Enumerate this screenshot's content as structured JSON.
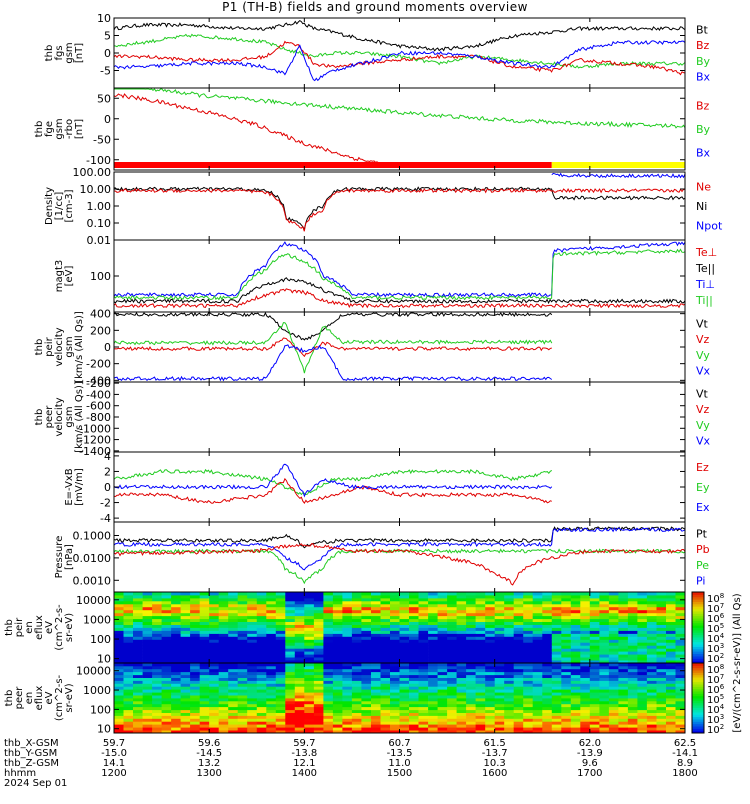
{
  "title": "P1 (TH-B) fields and ground moments overview",
  "colors": {
    "black": "#000000",
    "red": "#e00000",
    "green": "#22cc22",
    "blue": "#0000ff",
    "yellow": "#ffff00"
  },
  "chart_data": [
    {
      "type": "line",
      "id": "fgs",
      "ylabel_lines": [
        "thb",
        "fgs",
        "gsm",
        "[nT]"
      ],
      "ylim": [
        -10,
        10
      ],
      "yticks": [
        10,
        5,
        0,
        -5
      ],
      "legend": [
        {
          "name": "Bt",
          "color": "#000000"
        },
        {
          "name": "Bz",
          "color": "#e00000"
        },
        {
          "name": "By",
          "color": "#22cc22"
        },
        {
          "name": "Bx",
          "color": "#0000ff"
        }
      ],
      "series": [
        {
          "name": "Bt",
          "color": "#000000",
          "x": [
            12.0,
            12.3,
            12.8,
            13.3,
            13.6,
            13.8,
            13.95,
            14.1,
            14.3,
            14.6,
            15.0,
            15.4,
            15.8,
            16.2,
            16.6,
            16.9,
            17.3,
            17.7,
            18.0
          ],
          "y": [
            7,
            8,
            8,
            7,
            7,
            8,
            9,
            7,
            6,
            4,
            2,
            1,
            2,
            5,
            6,
            7,
            7,
            7,
            7
          ]
        },
        {
          "name": "By",
          "color": "#22cc22",
          "x": [
            12.0,
            12.3,
            12.8,
            13.3,
            13.6,
            13.8,
            13.95,
            14.1,
            14.3,
            14.6,
            15.0,
            15.4,
            15.8,
            16.2,
            16.6,
            16.9,
            17.3,
            17.7,
            18.0
          ],
          "y": [
            2,
            3,
            5,
            4,
            3,
            1,
            0,
            -1,
            0,
            0,
            -1,
            -3,
            -1,
            -2,
            -3,
            -4,
            -3,
            -3,
            -3
          ]
        },
        {
          "name": "Bz",
          "color": "#e00000",
          "x": [
            12.0,
            12.3,
            12.8,
            13.3,
            13.6,
            13.8,
            13.95,
            14.1,
            14.3,
            14.6,
            15.0,
            15.4,
            15.8,
            16.2,
            16.6,
            16.9,
            17.3,
            17.7,
            18.0
          ],
          "y": [
            -1,
            -1,
            -2,
            -2,
            -1,
            3,
            2,
            -3,
            -4,
            -3,
            -2,
            -1,
            -1,
            -4,
            -5,
            -2,
            -3,
            -4,
            -6
          ]
        },
        {
          "name": "Bx",
          "color": "#0000ff",
          "x": [
            12.0,
            12.3,
            12.8,
            13.3,
            13.6,
            13.8,
            13.95,
            14.1,
            14.3,
            14.6,
            15.0,
            15.4,
            15.8,
            16.2,
            16.6,
            16.9,
            17.3,
            17.7,
            18.0
          ],
          "y": [
            -4,
            -4,
            -3,
            -3,
            -4,
            -6,
            2,
            -8,
            -5,
            -3,
            0,
            0,
            -1,
            -3,
            -4,
            1,
            3,
            3,
            3
          ]
        }
      ]
    },
    {
      "type": "line",
      "id": "fge",
      "ylabel_lines": [
        "thb",
        "fge",
        "gsm",
        "-rbo",
        "[nT]"
      ],
      "ylim": [
        -125,
        75
      ],
      "yticks": [
        50,
        0,
        -50,
        -100
      ],
      "legend": [
        {
          "name": "Bz",
          "color": "#e00000"
        },
        {
          "name": "By",
          "color": "#22cc22"
        },
        {
          "name": "Bx",
          "color": "#0000ff"
        }
      ],
      "series": [
        {
          "name": "Bz",
          "color": "#e00000",
          "x": [
            12.0,
            12.5,
            13.0,
            13.5,
            14.0,
            14.5,
            15.0
          ],
          "y": [
            60,
            40,
            15,
            -15,
            -60,
            -95,
            -118
          ]
        },
        {
          "name": "By",
          "color": "#22cc22",
          "x": [
            12.0,
            13.0,
            14.0,
            15.0,
            16.0,
            17.0,
            18.0
          ],
          "y": [
            85,
            55,
            35,
            15,
            -2,
            -12,
            -18
          ]
        }
      ],
      "bar": [
        {
          "from": 12.0,
          "to": 16.6,
          "color": "#ff0000"
        },
        {
          "from": 16.6,
          "to": 18.0,
          "color": "#ffff00"
        }
      ]
    },
    {
      "type": "line",
      "id": "density",
      "yscale": "log",
      "ylabel_lines": [
        "Density",
        "[1/cc]",
        "[cm-3]"
      ],
      "ylim": [
        0.01,
        100
      ],
      "yticks": [
        100.0,
        10.0,
        1.0,
        0.1,
        0.01
      ],
      "ytick_labels": [
        "100.00",
        "10.00",
        "1.00",
        "0.10",
        "0.01"
      ],
      "legend": [
        {
          "name": "Ne",
          "color": "#e00000"
        },
        {
          "name": "Ni",
          "color": "#000000"
        },
        {
          "name": "Npot",
          "color": "#0000ff"
        }
      ],
      "series": [
        {
          "name": "Ni",
          "color": "#000000",
          "x": [
            12.0,
            13.3,
            13.6,
            13.8,
            14.0,
            14.2,
            14.4,
            15.0,
            16.0,
            16.6,
            16.62,
            18.0
          ],
          "y": [
            10,
            10,
            8,
            0.2,
            0.05,
            1,
            10,
            10,
            10,
            10,
            3,
            3
          ]
        },
        {
          "name": "Ne",
          "color": "#e00000",
          "x": [
            12.0,
            13.3,
            13.6,
            13.8,
            14.0,
            14.2,
            14.4,
            15.0,
            16.0,
            18.0
          ],
          "y": [
            8,
            8,
            6,
            0.15,
            0.04,
            0.6,
            8,
            8,
            8,
            8
          ]
        },
        {
          "name": "Npot",
          "color": "#0000ff",
          "x": [
            16.6,
            17.0,
            18.0
          ],
          "y": [
            70,
            60,
            60
          ]
        }
      ]
    },
    {
      "type": "line",
      "id": "temp",
      "yscale": "log",
      "ylabel_lines": [
        "magt3",
        "[eV]"
      ],
      "ylim": [
        10,
        1000
      ],
      "yticks": [
        100
      ],
      "ytick_labels": [
        "100"
      ],
      "legend": [
        {
          "name": "Te⊥",
          "color": "#e00000"
        },
        {
          "name": "Te||",
          "color": "#000000"
        },
        {
          "name": "Ti⊥",
          "color": "#0000ff"
        },
        {
          "name": "Ti||",
          "color": "#22cc22"
        }
      ],
      "series": [
        {
          "name": "Ti⊥",
          "color": "#0000ff",
          "x": [
            12.0,
            13.3,
            13.6,
            13.8,
            14.0,
            14.2,
            14.5,
            16.6,
            16.62,
            18.0
          ],
          "y": [
            30,
            30,
            200,
            800,
            500,
            100,
            30,
            30,
            500,
            800
          ]
        },
        {
          "name": "Ti||",
          "color": "#22cc22",
          "x": [
            12.0,
            13.3,
            13.6,
            13.8,
            14.0,
            14.2,
            14.5,
            16.6,
            16.62,
            18.0
          ],
          "y": [
            25,
            25,
            150,
            400,
            250,
            80,
            25,
            25,
            400,
            500
          ]
        },
        {
          "name": "Te||",
          "color": "#000000",
          "x": [
            12.0,
            13.3,
            13.6,
            13.8,
            14.0,
            14.2,
            14.5,
            18.0
          ],
          "y": [
            20,
            20,
            60,
            80,
            70,
            40,
            20,
            20
          ]
        },
        {
          "name": "Te⊥",
          "color": "#e00000",
          "x": [
            12.0,
            13.3,
            13.6,
            13.8,
            14.0,
            14.2,
            14.5,
            18.0
          ],
          "y": [
            15,
            15,
            30,
            40,
            35,
            20,
            15,
            15
          ]
        }
      ]
    },
    {
      "type": "line",
      "id": "peir_vel",
      "ylabel_lines": [
        "thb",
        "peir",
        "velocity",
        "gsm",
        "[km/s (All Qs)]"
      ],
      "ylim": [
        -420,
        420
      ],
      "yticks": [
        400,
        200,
        0,
        -200,
        -400
      ],
      "legend": [
        {
          "name": "Vt",
          "color": "#000000"
        },
        {
          "name": "Vz",
          "color": "#e00000"
        },
        {
          "name": "Vy",
          "color": "#22cc22"
        },
        {
          "name": "Vx",
          "color": "#0000ff"
        }
      ],
      "series": [
        {
          "name": "Vt",
          "color": "#000000",
          "x": [
            12.0,
            13.6,
            13.8,
            14.0,
            14.2,
            14.4,
            16.6
          ],
          "y": [
            390,
            390,
            200,
            80,
            200,
            390,
            390
          ]
        },
        {
          "name": "Vy",
          "color": "#22cc22",
          "x": [
            12.0,
            13.6,
            13.8,
            14.0,
            14.2,
            14.4,
            16.6
          ],
          "y": [
            50,
            50,
            300,
            -300,
            250,
            60,
            60
          ]
        },
        {
          "name": "Vz",
          "color": "#e00000",
          "x": [
            12.0,
            13.6,
            13.8,
            14.0,
            14.2,
            14.4,
            16.6
          ],
          "y": [
            -20,
            -20,
            100,
            -100,
            50,
            -20,
            -20
          ]
        },
        {
          "name": "Vx",
          "color": "#0000ff",
          "x": [
            12.0,
            13.6,
            13.8,
            14.0,
            14.2,
            14.4,
            16.6
          ],
          "y": [
            -380,
            -380,
            20,
            -50,
            10,
            -380,
            -380
          ]
        }
      ]
    },
    {
      "type": "line",
      "id": "peer_vel",
      "ylabel_lines": [
        "thb",
        "peer",
        "velocity",
        "gsm",
        "[km/s (All Qs)]"
      ],
      "ylim": [
        -1420,
        -180
      ],
      "yticks": [
        -200,
        -400,
        -600,
        -800,
        -1000,
        -1200,
        -1400
      ],
      "legend": [
        {
          "name": "Vt",
          "color": "#000000"
        },
        {
          "name": "Vz",
          "color": "#e00000"
        },
        {
          "name": "Vy",
          "color": "#22cc22"
        },
        {
          "name": "Vx",
          "color": "#0000ff"
        }
      ],
      "series": []
    },
    {
      "type": "line",
      "id": "efield",
      "ylabel_lines": [
        "E=-VxB",
        "[mV/m]"
      ],
      "ylim": [
        -4.5,
        4.5
      ],
      "yticks": [
        4,
        2,
        0,
        -2,
        -4
      ],
      "legend": [
        {
          "name": "Ez",
          "color": "#e00000"
        },
        {
          "name": "Ey",
          "color": "#22cc22"
        },
        {
          "name": "Ex",
          "color": "#0000ff"
        }
      ],
      "series": [
        {
          "name": "Ey",
          "color": "#22cc22",
          "x": [
            12.0,
            12.5,
            13.0,
            13.6,
            13.8,
            14.0,
            14.3,
            14.6,
            15.0,
            15.4,
            15.8,
            16.2,
            16.6
          ],
          "y": [
            1,
            2,
            2,
            1,
            0,
            -1,
            1,
            1,
            2,
            2,
            2,
            1,
            2
          ]
        },
        {
          "name": "Ez",
          "color": "#e00000",
          "x": [
            12.0,
            12.5,
            13.0,
            13.6,
            13.8,
            14.0,
            14.3,
            14.6,
            15.0,
            15.4,
            15.8,
            16.2,
            16.6
          ],
          "y": [
            -1,
            -1,
            -2,
            -1,
            1,
            -2,
            -1,
            0,
            -1,
            -1,
            -1,
            -1,
            -2
          ]
        },
        {
          "name": "Ex",
          "color": "#0000ff",
          "x": [
            12.0,
            13.6,
            13.8,
            14.0,
            14.2,
            14.5,
            16.6
          ],
          "y": [
            0,
            0,
            3,
            -1,
            1,
            0,
            0
          ]
        }
      ]
    },
    {
      "type": "line",
      "id": "pressure",
      "yscale": "log",
      "ylabel_lines": [
        "Pressure",
        "[nPa]"
      ],
      "ylim": [
        0.0003,
        0.4
      ],
      "yticks": [
        0.1,
        0.01,
        0.001,
        0.0001
      ],
      "ytick_labels": [
        "0.1000",
        "0.0100",
        "0.0010",
        "0.0001"
      ],
      "legend": [
        {
          "name": "Pt",
          "color": "#000000"
        },
        {
          "name": "Pb",
          "color": "#e00000"
        },
        {
          "name": "Pe",
          "color": "#22cc22"
        },
        {
          "name": "Pi",
          "color": "#0000ff"
        }
      ],
      "series": [
        {
          "name": "Pt",
          "color": "#000000",
          "x": [
            12.0,
            13.6,
            13.8,
            14.0,
            14.2,
            14.4,
            16.6,
            16.62,
            18.0
          ],
          "y": [
            0.06,
            0.06,
            0.1,
            0.03,
            0.05,
            0.06,
            0.06,
            0.2,
            0.2
          ]
        },
        {
          "name": "Pi",
          "color": "#0000ff",
          "x": [
            12.0,
            13.6,
            13.8,
            14.0,
            14.2,
            14.4,
            16.6,
            16.62,
            18.0
          ],
          "y": [
            0.04,
            0.04,
            0.01,
            0.003,
            0.01,
            0.04,
            0.04,
            0.18,
            0.18
          ]
        },
        {
          "name": "Pe",
          "color": "#22cc22",
          "x": [
            12.0,
            13.6,
            13.8,
            14.0,
            14.2,
            14.4,
            18.0
          ],
          "y": [
            0.02,
            0.02,
            0.003,
            0.0008,
            0.003,
            0.02,
            0.02
          ]
        },
        {
          "name": "Pb",
          "color": "#e00000",
          "x": [
            12.0,
            13.5,
            14.0,
            14.5,
            15.0,
            15.5,
            16.0,
            16.2,
            16.6,
            17.0,
            18.0
          ],
          "y": [
            0.015,
            0.02,
            0.04,
            0.02,
            0.02,
            0.01,
            0.002,
            0.0006,
            0.01,
            0.02,
            0.02
          ]
        }
      ]
    },
    {
      "type": "heatmap",
      "id": "peir_en",
      "ylabel_lines": [
        "thb",
        "peir",
        "en",
        "eflux",
        "eV",
        "(cm^2-s-",
        "sr-eV)"
      ],
      "yscale": "log",
      "ylim": [
        6,
        25000
      ],
      "yticks": [
        10000,
        1000,
        100,
        10
      ],
      "ytick_labels": [
        "10000",
        "1000",
        "100",
        "10"
      ]
    },
    {
      "type": "heatmap",
      "id": "peer_en",
      "ylabel_lines": [
        "thb",
        "peer",
        "en",
        "eflux",
        "eV",
        "(cm^2-s-",
        "sr-eV)"
      ],
      "yscale": "log",
      "ylim": [
        6,
        25000
      ],
      "yticks": [
        10000,
        1000,
        100,
        10
      ],
      "ytick_labels": [
        "10000",
        "1000",
        "100",
        "10"
      ]
    }
  ],
  "colorbar": {
    "label": "[eV/(cm^2-s-sr-eV)] (All Qs)",
    "tick_labels": [
      "10^8",
      "10^7",
      "10^6",
      "10^5",
      "10^4",
      "10^3",
      "10^2",
      "10^8",
      "10^7",
      "10^6",
      "10^5",
      "10^4",
      "10^3",
      "10^2"
    ]
  },
  "xaxis": {
    "range": [
      12.0,
      18.0
    ],
    "ticks": [
      12.0,
      13.0,
      14.0,
      15.0,
      16.0,
      17.0,
      18.0
    ],
    "rows": [
      {
        "label": "thb_X-GSM",
        "values": [
          "59.7",
          "59.6",
          "59.7",
          "60.7",
          "61.5",
          "62.0",
          "62.5"
        ]
      },
      {
        "label": "thb_Y-GSM",
        "values": [
          "-15.0",
          "-14.5",
          "-13.8",
          "-13.5",
          "-13.7",
          "-13.9",
          "-14.1"
        ]
      },
      {
        "label": "thb_Z-GSM",
        "values": [
          "14.1",
          "13.2",
          "12.1",
          "11.0",
          "10.3",
          "9.6",
          "8.9"
        ]
      },
      {
        "label": "hhmm",
        "values": [
          "1200",
          "1300",
          "1400",
          "1500",
          "1600",
          "1700",
          "1800"
        ]
      },
      {
        "label": "2024 Sep 01",
        "values": []
      }
    ]
  }
}
